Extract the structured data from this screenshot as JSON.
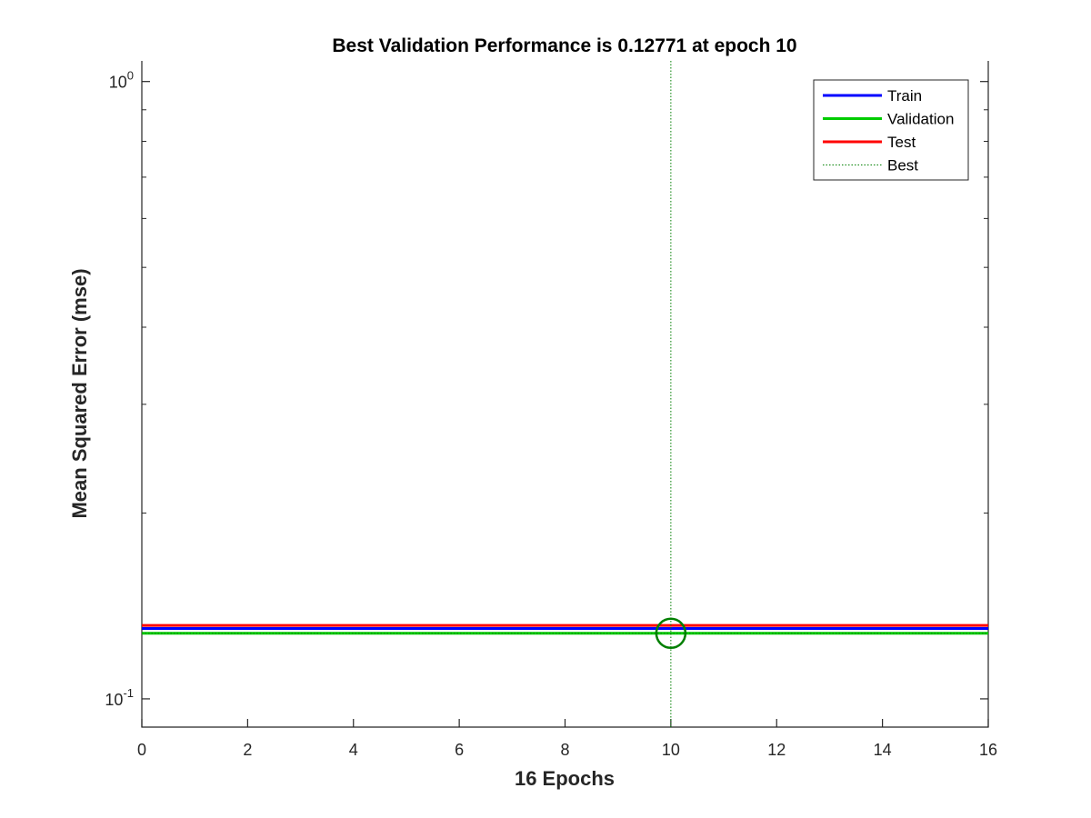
{
  "chart_data": {
    "type": "line",
    "title": "Best Validation Performance is 0.12771 at epoch 10",
    "xlabel": "16 Epochs",
    "ylabel": "Mean Squared Error  (mse)",
    "xlim": [
      0,
      16
    ],
    "ylim": [
      0.09,
      1.08
    ],
    "yscale": "log",
    "xticks": [
      0,
      2,
      4,
      6,
      8,
      10,
      12,
      14,
      16
    ],
    "yticks": [
      {
        "value": 0.1,
        "base": "10",
        "exp": "-1"
      },
      {
        "value": 1,
        "base": "10",
        "exp": "0"
      }
    ],
    "x": [
      0,
      16
    ],
    "series": [
      {
        "name": "Train",
        "color": "#0000ff",
        "style": "solid",
        "values": [
          0.13,
          0.13
        ]
      },
      {
        "name": "Validation",
        "color": "#00cc00",
        "style": "solid",
        "values": [
          0.12771,
          0.12771
        ]
      },
      {
        "name": "Test",
        "color": "#ff0000",
        "style": "solid",
        "values": [
          0.1315,
          0.1315
        ]
      }
    ],
    "best": {
      "name": "Best",
      "epoch": 10,
      "value": 0.12771,
      "color": "#007f00",
      "style": "dotted"
    },
    "legend": {
      "position": "top-right",
      "entries": [
        "Train",
        "Validation",
        "Test",
        "Best"
      ]
    },
    "grid": false
  }
}
